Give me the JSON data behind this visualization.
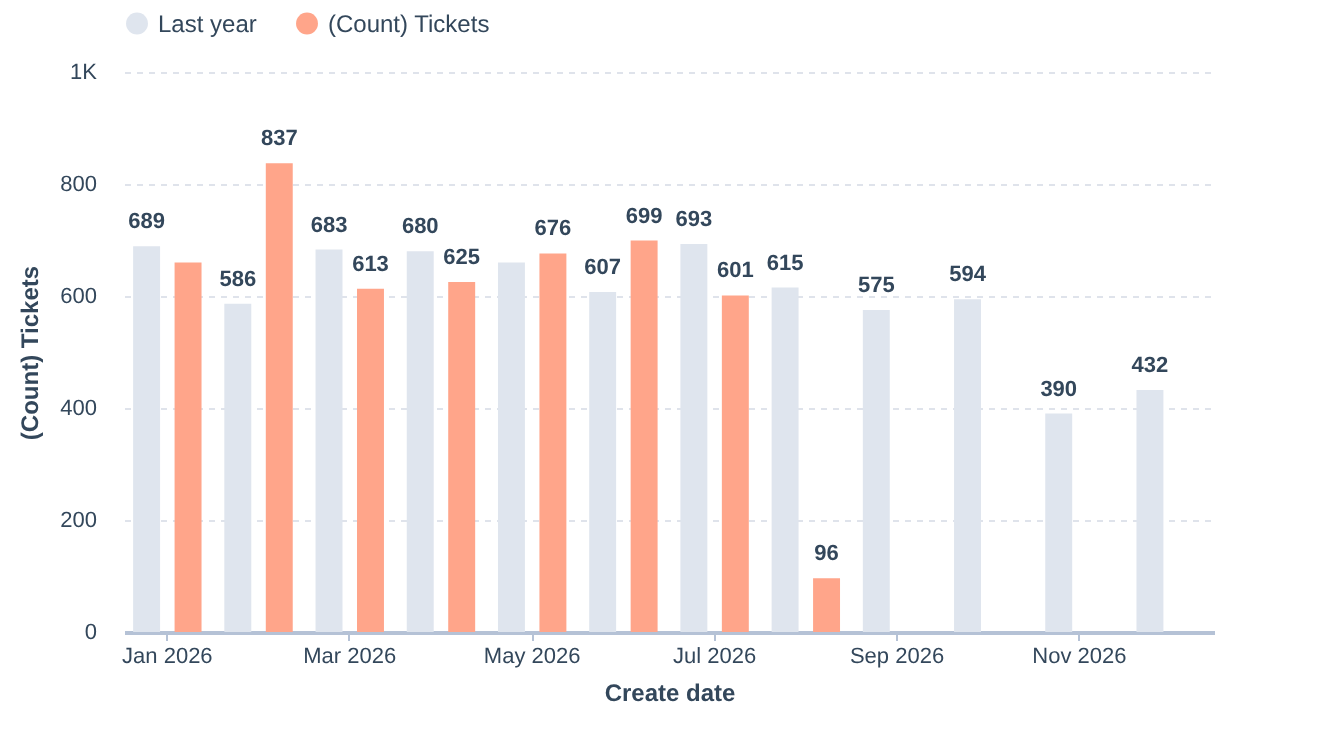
{
  "chart_data": {
    "type": "bar",
    "xlabel": "Create date",
    "ylabel": "(Count) Tickets",
    "categories": [
      "Jan 2026",
      null,
      "Mar 2026",
      null,
      "May 2026",
      null,
      "Jul 2026",
      null,
      "Sep 2026",
      null,
      "Nov 2026",
      null
    ],
    "series": [
      {
        "name": "Last year",
        "color": "#dfe5ee",
        "values": [
          689,
          586,
          683,
          680,
          660,
          607,
          693,
          615,
          575,
          594,
          390,
          432
        ],
        "value_labels": [
          "689",
          "586",
          "683",
          "680",
          null,
          "607",
          "693",
          "615",
          "575",
          "594",
          "390",
          "432"
        ]
      },
      {
        "name": "(Count) Tickets",
        "color": "#ffa58a",
        "values": [
          660,
          837,
          613,
          625,
          676,
          699,
          601,
          96,
          null,
          null,
          null,
          null
        ],
        "value_labels": [
          null,
          "837",
          "613",
          "625",
          "676",
          "699",
          "601",
          "96",
          null,
          null,
          null,
          null
        ]
      }
    ],
    "ylim": [
      0,
      1000
    ],
    "yticks": [
      0,
      200,
      400,
      600,
      800,
      {
        "value": 1000,
        "label": "1K"
      }
    ],
    "grid": "y",
    "legend": "top left"
  }
}
